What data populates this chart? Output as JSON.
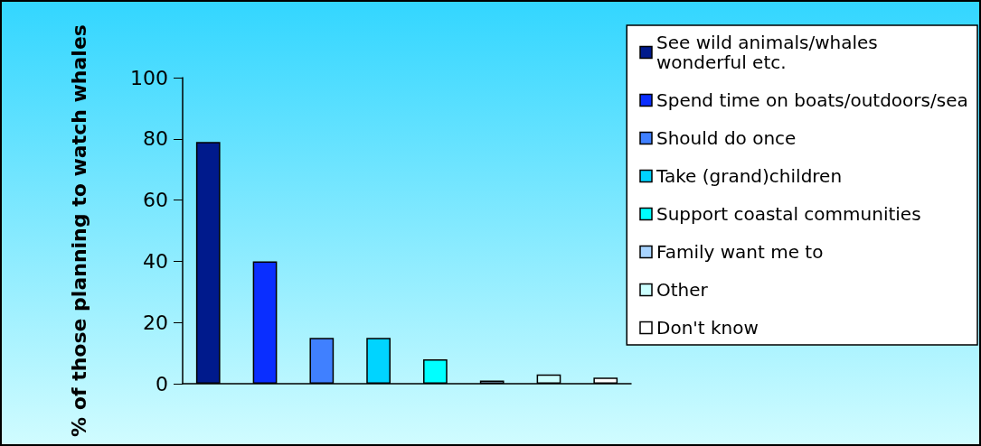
{
  "chart_data": {
    "type": "bar",
    "ylabel": "% of those planning to watch whales",
    "categories": [
      null
    ],
    "ylim": [
      0,
      100
    ],
    "yticks": [
      0,
      20,
      40,
      60,
      80,
      100
    ],
    "grid": false,
    "legend": "right",
    "series": [
      {
        "name": "See wild animals/whales wonderful etc.",
        "color": "#001a8c",
        "values": [
          79
        ]
      },
      {
        "name": "Spend time on boats/outdoors/sea",
        "color": "#0a2eff",
        "values": [
          40
        ]
      },
      {
        "name": "Should do once",
        "color": "#4080ff",
        "values": [
          15
        ]
      },
      {
        "name": "Take (grand)children",
        "color": "#00d4ff",
        "values": [
          15
        ]
      },
      {
        "name": "Support coastal communities",
        "color": "#00ffff",
        "values": [
          8
        ]
      },
      {
        "name": "Family want me to",
        "color": "#a8d4ff",
        "values": [
          1
        ]
      },
      {
        "name": "Other",
        "color": "#ccffff",
        "values": [
          3
        ]
      },
      {
        "name": "Don't know",
        "color": "#ffffff",
        "values": [
          2
        ]
      }
    ]
  }
}
